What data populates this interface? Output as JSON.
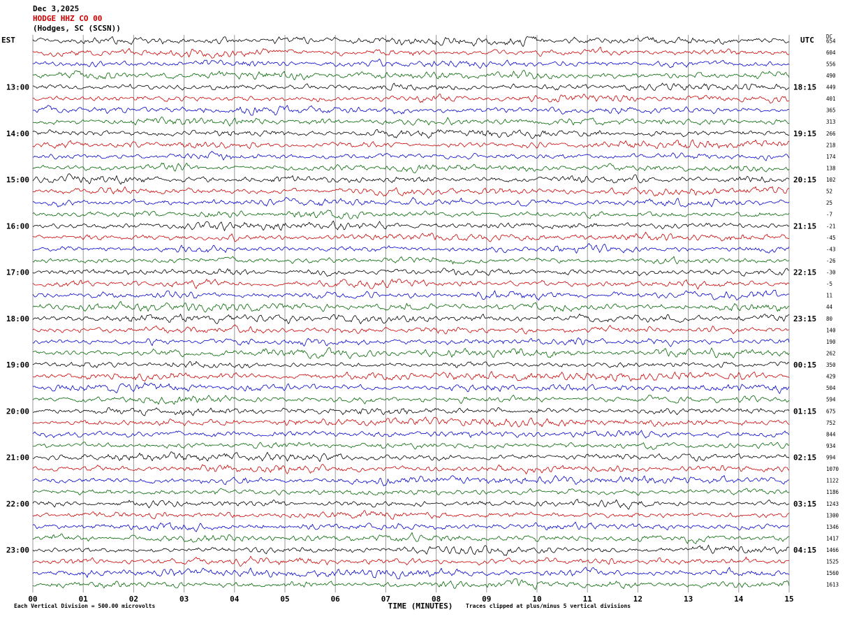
{
  "header": {
    "date": "Dec 3,2025",
    "station": "HODGE HHZ CO 00",
    "location": "(Hodges, SC (SCSN))"
  },
  "axes": {
    "left_label": "EST",
    "right_label": "UTC",
    "dc_header": "DC",
    "bottom_label": "TIME (MINUTES)",
    "left_times": [
      "13:00",
      "14:00",
      "15:00",
      "16:00",
      "17:00",
      "18:00",
      "19:00",
      "20:00",
      "21:00",
      "22:00",
      "23:00"
    ],
    "right_times": [
      "18:15",
      "19:15",
      "20:15",
      "21:15",
      "22:15",
      "23:15",
      "00:15",
      "01:15",
      "02:15",
      "03:15",
      "04:15"
    ],
    "minute_ticks": [
      "00",
      "01",
      "02",
      "03",
      "04",
      "05",
      "06",
      "07",
      "08",
      "09",
      "10",
      "11",
      "12",
      "13",
      "14",
      "15"
    ],
    "dc_values": [
      654,
      604,
      556,
      490,
      449,
      401,
      365,
      313,
      266,
      218,
      174,
      138,
      102,
      52,
      25,
      -7,
      -21,
      -45,
      -43,
      -26,
      -30,
      -5,
      11,
      44,
      80,
      140,
      190,
      262,
      350,
      429,
      504,
      594,
      675,
      752,
      844,
      934,
      994,
      1070,
      1122,
      1186,
      1243,
      1300,
      1346,
      1417,
      1466,
      1525,
      1560,
      1613
    ]
  },
  "footer": {
    "left_note": "Each Vertical Division =  500.00 microvolts",
    "right_note": "Traces clipped at plus/minus 5 vertical divisions"
  },
  "colors": {
    "black": "#000000",
    "red": "#cc0000",
    "blue": "#0000cc",
    "green": "#006600",
    "grid": "#999999"
  },
  "chart_data": {
    "type": "line",
    "subtype": "helicorder seismogram",
    "title": "HODGE HHZ CO 00 (Hodges, SC (SCSN)) — Dec 3,2025",
    "xlabel": "TIME (MINUTES)",
    "x_range_minutes": [
      0,
      15
    ],
    "num_traces": 48,
    "trace_duration_minutes": 15,
    "trace_color_cycle": [
      "#000000",
      "#cc0000",
      "#0000cc",
      "#006600"
    ],
    "left_hour_labels_est": [
      "13:00",
      "14:00",
      "15:00",
      "16:00",
      "17:00",
      "18:00",
      "19:00",
      "20:00",
      "21:00",
      "22:00",
      "23:00"
    ],
    "right_hour_labels_utc": [
      "18:15",
      "19:15",
      "20:15",
      "21:15",
      "22:15",
      "23:15",
      "00:15",
      "01:15",
      "02:15",
      "03:15",
      "04:15"
    ],
    "hour_label_row_indices": [
      4,
      8,
      12,
      16,
      20,
      24,
      28,
      32,
      36,
      40,
      44
    ],
    "dc_offsets": [
      654,
      604,
      556,
      490,
      449,
      401,
      365,
      313,
      266,
      218,
      174,
      138,
      102,
      52,
      25,
      -7,
      -21,
      -45,
      -43,
      -26,
      -30,
      -5,
      11,
      44,
      80,
      140,
      190,
      262,
      350,
      429,
      504,
      594,
      675,
      752,
      844,
      934,
      994,
      1070,
      1122,
      1186,
      1243,
      1300,
      1346,
      1417,
      1466,
      1525,
      1560,
      1613
    ],
    "vertical_division_microvolts": 500.0,
    "clip_limit_divisions": 5,
    "grid": "vertical minute gridlines on",
    "legend_position": "none",
    "note": "Continuous microseismic background noise traces; individual waveform sample values are not resolvable from the image and are rendered procedurally"
  }
}
